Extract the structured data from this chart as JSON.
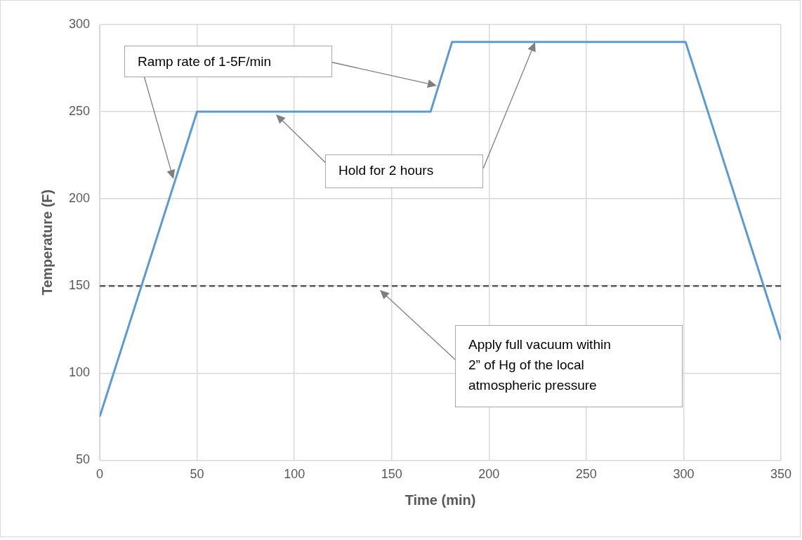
{
  "chart_data": {
    "type": "line",
    "xlabel": "Time (min)",
    "ylabel": "Temperature (F)",
    "x": [
      0,
      50,
      170,
      181,
      301,
      350
    ],
    "series": [
      {
        "color": "#5b9bd5",
        "values": [
          75,
          250,
          250,
          290,
          290,
          119
        ]
      }
    ],
    "xlim": [
      0,
      350
    ],
    "xticks": [
      0,
      50,
      100,
      150,
      200,
      250,
      300,
      350
    ],
    "ylim": [
      50,
      300
    ],
    "yticks": [
      50,
      100,
      150,
      200,
      250,
      300
    ],
    "grid": true,
    "legend": false,
    "marker": "none",
    "line_style": "solid",
    "ref_lines": [
      {
        "axis": "y",
        "value": 150,
        "color": "#595959",
        "line_style": "dashed"
      }
    ],
    "annotations": [
      "Ramp rate of 1-5F/min",
      "Hold for 2 hours",
      "Apply full vacuum within 2” of Hg of the local atmospheric pressure"
    ]
  }
}
